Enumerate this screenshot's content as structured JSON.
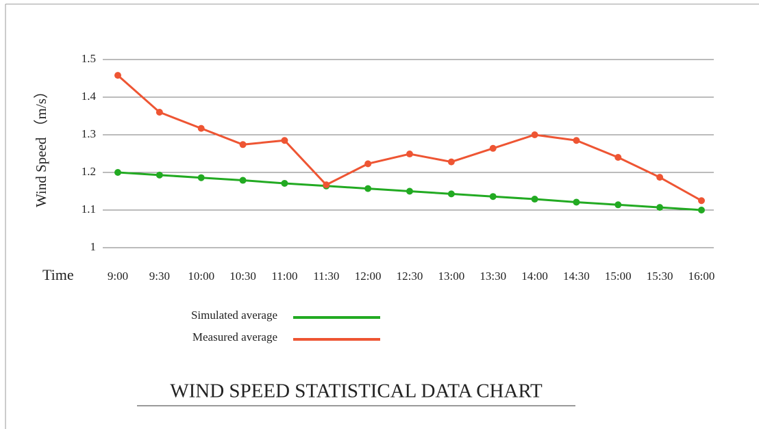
{
  "chart_data": {
    "type": "line",
    "title": "WIND SPEED STATISTICAL DATA CHART",
    "x_label": "Time",
    "y_label": "Wind Speed （m/s）",
    "categories": [
      "9:00",
      "9:30",
      "10:00",
      "10:30",
      "11:00",
      "11:30",
      "12:00",
      "12:30",
      "13:00",
      "13:30",
      "14:00",
      "14:30",
      "15:00",
      "15:30",
      "16:00"
    ],
    "series": [
      {
        "name": "Simulated average",
        "color": "#22aa22",
        "values": [
          1.2,
          1.193,
          1.186,
          1.179,
          1.171,
          1.164,
          1.157,
          1.15,
          1.143,
          1.136,
          1.129,
          1.121,
          1.114,
          1.107,
          1.1
        ]
      },
      {
        "name": "Measured average",
        "color": "#ee5533",
        "values": [
          1.458,
          1.36,
          1.317,
          1.274,
          1.285,
          1.167,
          1.223,
          1.249,
          1.228,
          1.264,
          1.3,
          1.285,
          1.24,
          1.187,
          1.125
        ]
      }
    ],
    "ylim": [
      1,
      1.5
    ],
    "yticks": [
      1,
      1.1,
      1.2,
      1.3,
      1.4,
      1.5
    ],
    "grid": true
  }
}
